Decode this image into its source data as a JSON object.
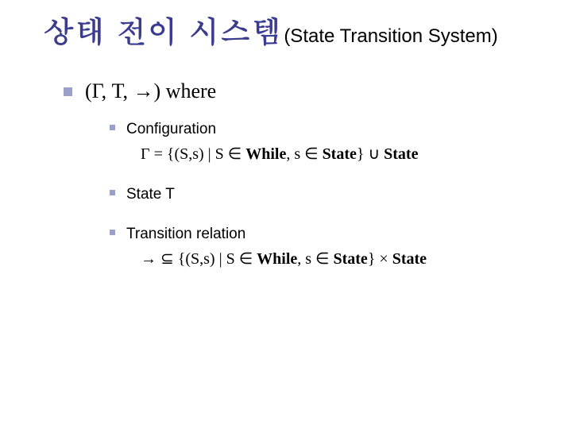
{
  "title": {
    "main": "상태 전이 시스템",
    "sub": "(State Transition System)",
    "main_color": "#3b3b8f",
    "main_fontsize": 38,
    "sub_fontsize": 24
  },
  "bullet": {
    "color": "#9aa0c8",
    "lvl1_size": 11,
    "lvl2_size": 7
  },
  "lvl1_line": "(Γ, T, →)  where",
  "items": [
    {
      "head": "Configuration",
      "detail_prefix": "Γ = {(S,s) | S ∈ ",
      "detail_mid1": "While",
      "detail_mid2": ", s ∈ ",
      "detail_mid3": "State",
      "detail_mid4": "} ∪ ",
      "detail_tail": "State"
    },
    {
      "head": "State T",
      "detail_prefix": "",
      "detail_mid1": "",
      "detail_mid2": "",
      "detail_mid3": "",
      "detail_mid4": "",
      "detail_tail": ""
    },
    {
      "head": "Transition relation",
      "detail_prefix": "→ ⊆ {(S,s) | S ∈ ",
      "detail_mid1": "While",
      "detail_mid2": ", s ∈ ",
      "detail_mid3": "State",
      "detail_mid4": "} × ",
      "detail_tail": "State"
    }
  ]
}
